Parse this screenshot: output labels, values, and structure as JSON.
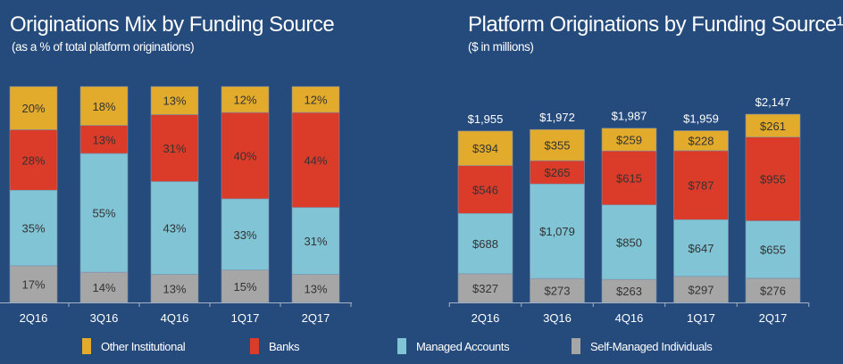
{
  "colors": {
    "background": "#254a7c",
    "Other Institutional": "#e2ab2b",
    "Banks": "#db3c2a",
    "Managed Accounts": "#80c4d6",
    "Self-Managed Individuals": "#a6a6a6",
    "label": "#333333",
    "axis": "#a6b3c6"
  },
  "legend": [
    "Other Institutional",
    "Banks",
    "Managed Accounts",
    "Self-Managed Individuals"
  ],
  "chart_data": [
    {
      "type": "bar",
      "stacked": true,
      "title": "Originations Mix by Funding Source",
      "subtitle": "(as a % of total platform originations)",
      "categories": [
        "2Q16",
        "3Q16",
        "4Q16",
        "1Q17",
        "2Q17"
      ],
      "ylim": [
        0,
        100
      ],
      "series": [
        {
          "name": "Self-Managed Individuals",
          "values": [
            17,
            14,
            13,
            15,
            13
          ],
          "labels": [
            "17%",
            "14%",
            "13%",
            "15%",
            "13%"
          ]
        },
        {
          "name": "Managed Accounts",
          "values": [
            35,
            55,
            43,
            33,
            31
          ],
          "labels": [
            "35%",
            "55%",
            "43%",
            "33%",
            "31%"
          ]
        },
        {
          "name": "Banks",
          "values": [
            28,
            13,
            31,
            40,
            44
          ],
          "labels": [
            "28%",
            "13%",
            "31%",
            "40%",
            "44%"
          ]
        },
        {
          "name": "Other Institutional",
          "values": [
            20,
            18,
            13,
            12,
            12
          ],
          "labels": [
            "20%",
            "18%",
            "13%",
            "12%",
            "12%"
          ]
        }
      ]
    },
    {
      "type": "bar",
      "stacked": true,
      "title": "Platform Originations by Funding Source¹",
      "subtitle": "($ in millions)",
      "categories": [
        "2Q16",
        "3Q16",
        "4Q16",
        "1Q17",
        "2Q17"
      ],
      "totals": [
        1955,
        1972,
        1987,
        1959,
        2147
      ],
      "total_labels": [
        "$1,955",
        "$1,972",
        "$1,987",
        "$1,959",
        "$2,147"
      ],
      "series": [
        {
          "name": "Self-Managed Individuals",
          "values": [
            327,
            273,
            263,
            297,
            276
          ],
          "labels": [
            "$327",
            "$273",
            "$263",
            "$297",
            "$276"
          ]
        },
        {
          "name": "Managed Accounts",
          "values": [
            688,
            1079,
            850,
            647,
            655
          ],
          "labels": [
            "$688",
            "$1,079",
            "$850",
            "$647",
            "$655"
          ]
        },
        {
          "name": "Banks",
          "values": [
            546,
            265,
            615,
            787,
            955
          ],
          "labels": [
            "$546",
            "$265",
            "$615",
            "$787",
            "$955"
          ]
        },
        {
          "name": "Other Institutional",
          "values": [
            394,
            355,
            259,
            228,
            261
          ],
          "labels": [
            "$394",
            "$355",
            "$259",
            "$228",
            "$261"
          ]
        }
      ]
    }
  ]
}
